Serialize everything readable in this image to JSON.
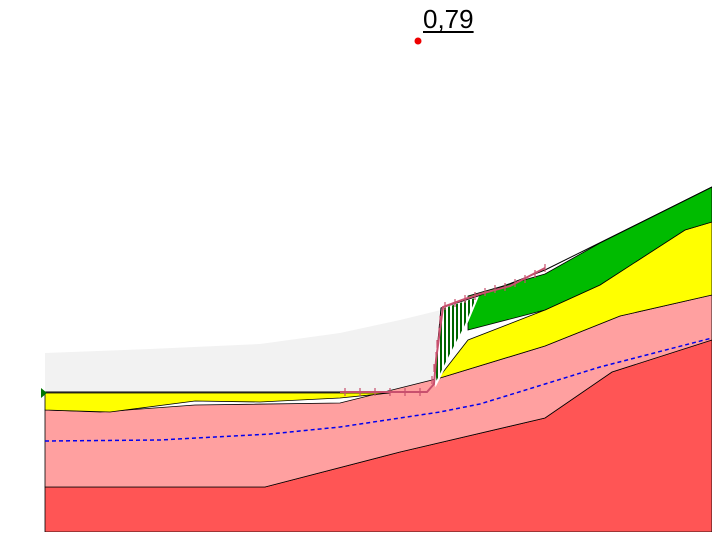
{
  "factor_of_safety": "0,79",
  "colors": {
    "background": "#ffffff",
    "slip_zone": "#f2f2f2",
    "layer_green": "#00bb00",
    "layer_yellow": "#ffff00",
    "layer_pink": "#ffa0a0",
    "layer_red": "#ff5555",
    "water_table": "#0000ee",
    "slip_surface": "#c8506e",
    "anchor_point": "#ee0000",
    "hatch": "#006600"
  },
  "icons": {
    "slip_center": "red-dot-icon",
    "boundary_marker": "green-triangle-icon"
  }
}
